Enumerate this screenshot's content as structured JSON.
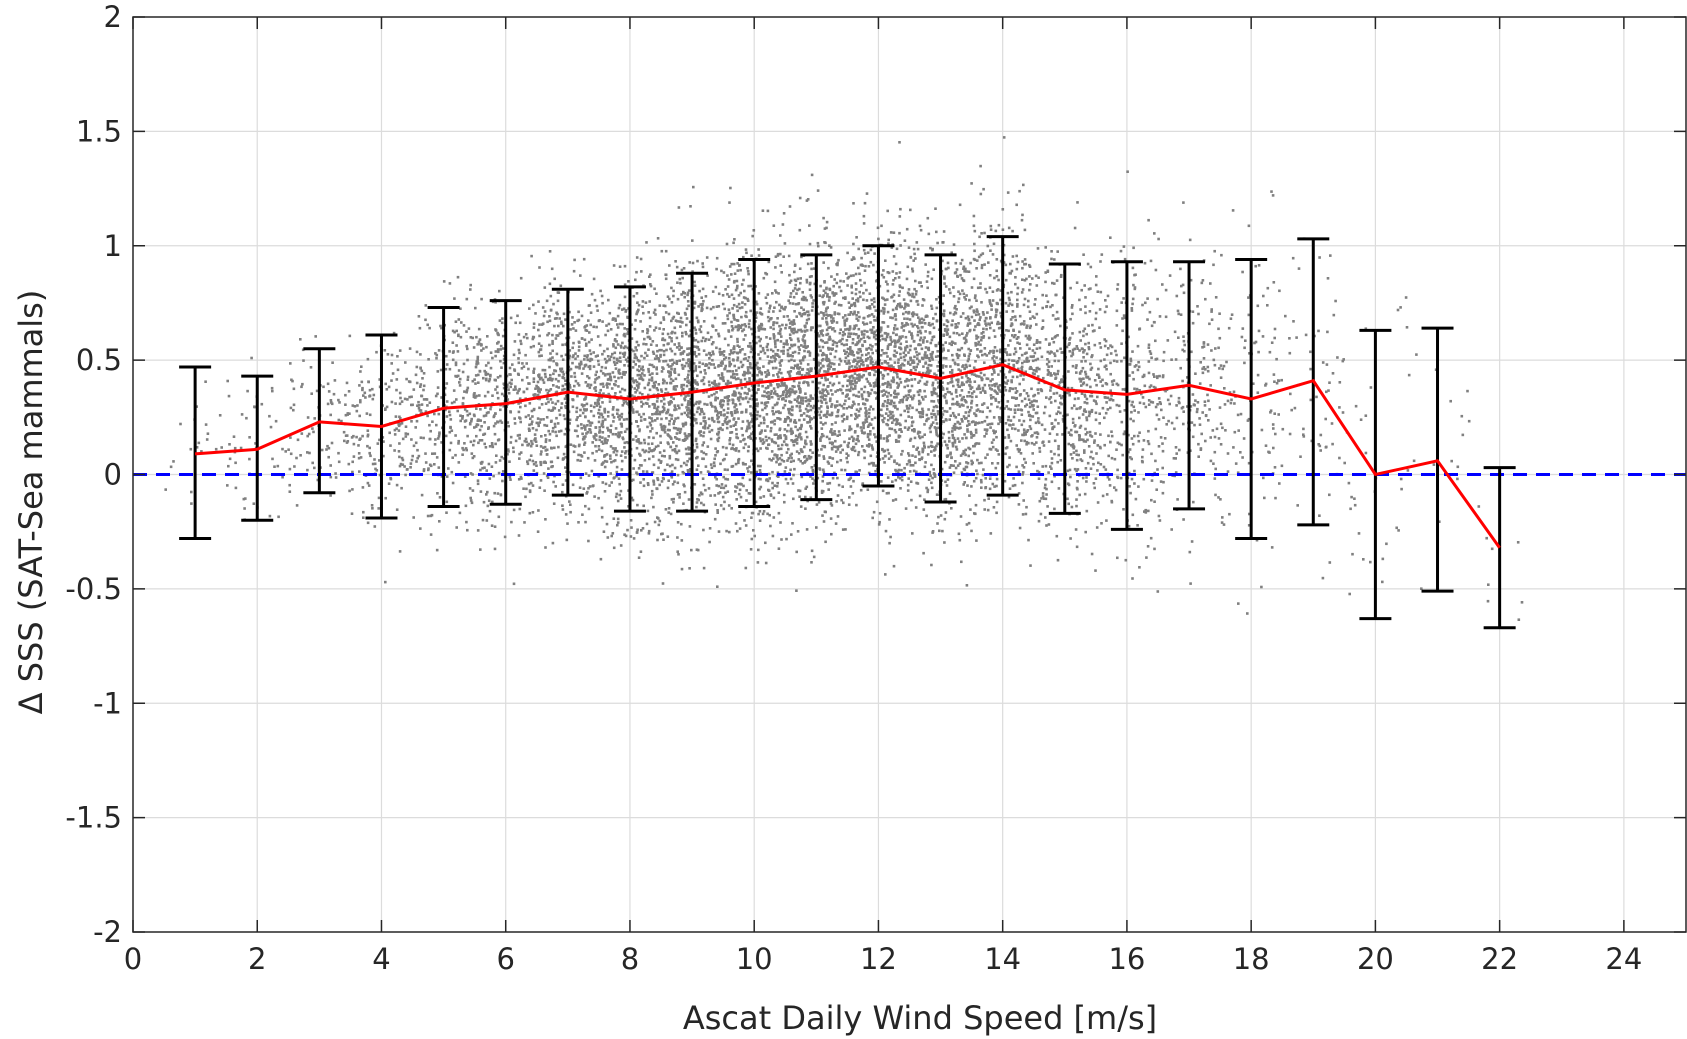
{
  "chart_data": {
    "type": "scatter",
    "xlabel": "Ascat Daily Wind Speed [m/s]",
    "ylabel": "Δ SSS (SAT-Sea mammals)",
    "xlim": [
      0,
      25
    ],
    "ylim": [
      -2,
      2
    ],
    "xticks": [
      0,
      2,
      4,
      6,
      8,
      10,
      12,
      14,
      16,
      18,
      20,
      22,
      24
    ],
    "yticks": [
      -2,
      -1.5,
      -1,
      -0.5,
      0,
      0.5,
      1,
      1.5,
      2
    ],
    "xtick_labels": [
      "0",
      "2",
      "4",
      "6",
      "8",
      "10",
      "12",
      "14",
      "16",
      "18",
      "20",
      "22",
      "24"
    ],
    "ytick_labels": [
      "-2",
      "-1.5",
      "-1",
      "-0.5",
      "0",
      "0.5",
      "1",
      "1.5",
      "2"
    ],
    "grid": true,
    "scatter": {
      "color": "#808080",
      "x_range": [
        0.5,
        23.5
      ],
      "y_range": [
        -2,
        2
      ],
      "point_density_by_wind_speed": [
        {
          "x": 1,
          "n": 20
        },
        {
          "x": 2,
          "n": 45
        },
        {
          "x": 3,
          "n": 90
        },
        {
          "x": 4,
          "n": 170
        },
        {
          "x": 5,
          "n": 260
        },
        {
          "x": 6,
          "n": 380
        },
        {
          "x": 7,
          "n": 520
        },
        {
          "x": 8,
          "n": 640
        },
        {
          "x": 9,
          "n": 740
        },
        {
          "x": 10,
          "n": 820
        },
        {
          "x": 11,
          "n": 860
        },
        {
          "x": 12,
          "n": 860
        },
        {
          "x": 13,
          "n": 780
        },
        {
          "x": 14,
          "n": 640
        },
        {
          "x": 15,
          "n": 460
        },
        {
          "x": 16,
          "n": 300
        },
        {
          "x": 17,
          "n": 190
        },
        {
          "x": 18,
          "n": 110
        },
        {
          "x": 19,
          "n": 60
        },
        {
          "x": 20,
          "n": 30
        },
        {
          "x": 21,
          "n": 16
        },
        {
          "x": 22,
          "n": 8
        }
      ]
    },
    "series": [
      {
        "type": "line",
        "color": "#ff0000",
        "x": [
          1,
          2,
          3,
          4,
          5,
          6,
          7,
          8,
          9,
          10,
          11,
          12,
          13,
          14,
          15,
          16,
          17,
          18,
          19,
          20,
          21,
          22
        ],
        "y": [
          0.09,
          0.11,
          0.23,
          0.21,
          0.29,
          0.31,
          0.36,
          0.33,
          0.36,
          0.4,
          0.43,
          0.47,
          0.42,
          0.48,
          0.37,
          0.35,
          0.39,
          0.33,
          0.41,
          0.0,
          0.06,
          -0.32
        ]
      },
      {
        "type": "errorbar",
        "color": "#000000",
        "x": [
          1,
          2,
          3,
          4,
          5,
          6,
          7,
          8,
          9,
          10,
          11,
          12,
          13,
          14,
          15,
          16,
          17,
          18,
          19,
          20,
          21,
          22
        ],
        "upper": [
          0.47,
          0.43,
          0.55,
          0.61,
          0.73,
          0.76,
          0.81,
          0.82,
          0.88,
          0.94,
          0.96,
          1.0,
          0.96,
          1.04,
          0.92,
          0.93,
          0.93,
          0.94,
          1.03,
          0.63,
          0.64,
          0.03
        ],
        "lower": [
          -0.28,
          -0.2,
          -0.08,
          -0.19,
          -0.14,
          -0.13,
          -0.09,
          -0.16,
          -0.16,
          -0.14,
          -0.11,
          -0.05,
          -0.12,
          -0.09,
          -0.17,
          -0.24,
          -0.15,
          -0.28,
          -0.22,
          -0.63,
          -0.51,
          -0.67
        ]
      },
      {
        "type": "reference_line",
        "color": "#0000ff",
        "style": "dashed",
        "y": 0
      }
    ]
  }
}
